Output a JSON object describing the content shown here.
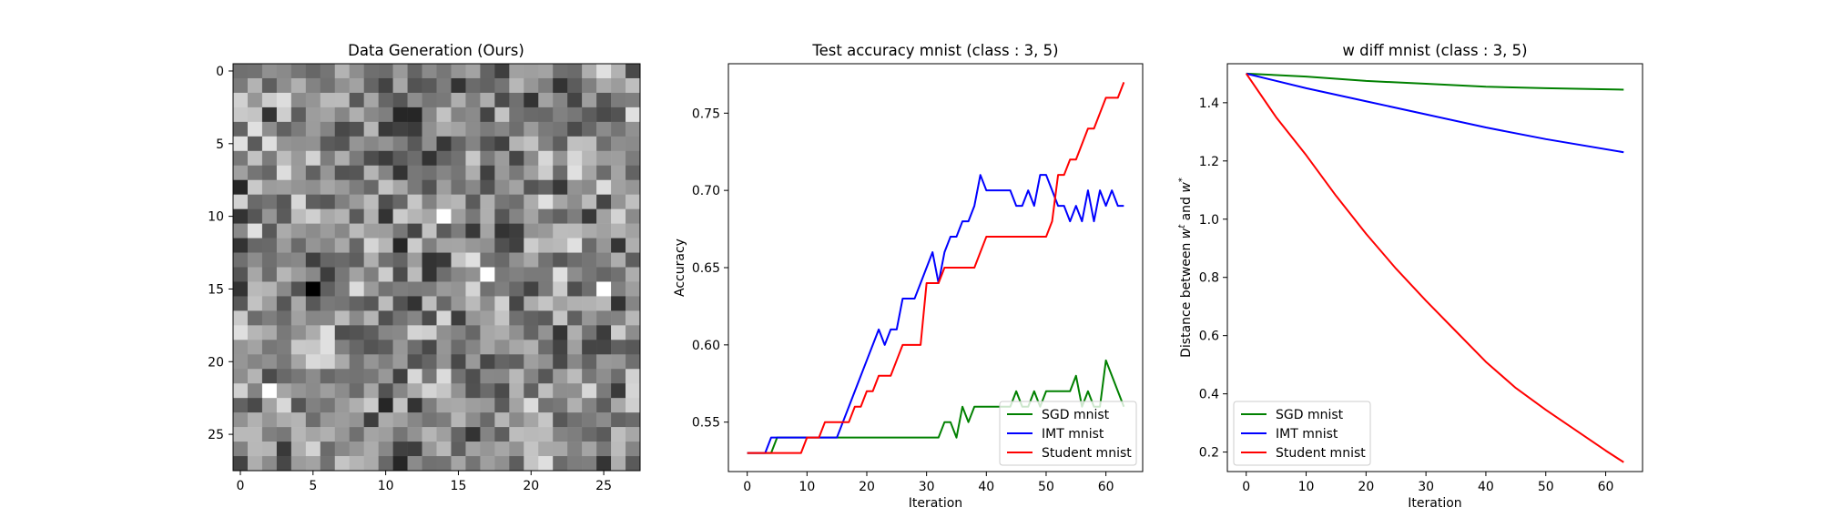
{
  "chart_data": [
    {
      "type": "heatmap",
      "title": "Data Generation (Ours)",
      "xlabel": "",
      "ylabel": "",
      "colormap": "gray",
      "size": [
        28,
        28
      ],
      "x_ticks": [
        0,
        5,
        10,
        15,
        20,
        25
      ],
      "y_ticks": [
        0,
        5,
        10,
        15,
        20,
        25
      ],
      "value_range": [
        0,
        1
      ],
      "notable_pixels": [
        {
          "row": 15,
          "col": 5,
          "value": 0.0
        },
        {
          "row": 10,
          "col": 14,
          "value": 1.0
        },
        {
          "row": 14,
          "col": 17,
          "value": 1.0
        },
        {
          "row": 15,
          "col": 25,
          "value": 1.0
        },
        {
          "row": 22,
          "col": 2,
          "value": 1.0
        },
        {
          "row": 3,
          "col": 11,
          "value": 0.15
        },
        {
          "row": 3,
          "col": 12,
          "value": 0.15
        },
        {
          "row": 8,
          "col": 0,
          "value": 0.15
        },
        {
          "row": 12,
          "col": 11,
          "value": 0.15
        },
        {
          "row": 23,
          "col": 10,
          "value": 0.15
        },
        {
          "row": 27,
          "col": 11,
          "value": 0.15
        }
      ]
    },
    {
      "type": "line",
      "title": "Test accuracy mnist (class : 3, 5)",
      "xlabel": "Iteration",
      "ylabel": "Accuracy",
      "xlim": [
        -3.15,
        66.15
      ],
      "ylim": [
        0.518,
        0.782
      ],
      "x_ticks": [
        0,
        10,
        20,
        30,
        40,
        50,
        60
      ],
      "y_ticks": [
        0.55,
        0.6,
        0.65,
        0.7,
        0.75
      ],
      "y_tick_labels": [
        "0.55",
        "0.60",
        "0.65",
        "0.70",
        "0.75"
      ],
      "legend_position": "lower-right",
      "series": [
        {
          "name": "SGD mnist",
          "color": "#008000",
          "values": [
            0.53,
            0.53,
            0.53,
            0.53,
            0.53,
            0.54,
            0.54,
            0.54,
            0.54,
            0.54,
            0.54,
            0.54,
            0.54,
            0.54,
            0.54,
            0.54,
            0.54,
            0.54,
            0.54,
            0.54,
            0.54,
            0.54,
            0.54,
            0.54,
            0.54,
            0.54,
            0.54,
            0.54,
            0.54,
            0.54,
            0.54,
            0.54,
            0.54,
            0.55,
            0.55,
            0.54,
            0.56,
            0.55,
            0.56,
            0.56,
            0.56,
            0.56,
            0.56,
            0.56,
            0.56,
            0.57,
            0.56,
            0.56,
            0.57,
            0.56,
            0.57,
            0.57,
            0.57,
            0.57,
            0.57,
            0.58,
            0.56,
            0.57,
            0.56,
            0.56,
            0.59,
            0.58,
            0.57,
            0.56
          ]
        },
        {
          "name": "IMT mnist",
          "color": "#0000ff",
          "values": [
            0.53,
            0.53,
            0.53,
            0.53,
            0.54,
            0.54,
            0.54,
            0.54,
            0.54,
            0.54,
            0.54,
            0.54,
            0.54,
            0.54,
            0.54,
            0.54,
            0.55,
            0.56,
            0.57,
            0.58,
            0.59,
            0.6,
            0.61,
            0.6,
            0.61,
            0.61,
            0.63,
            0.63,
            0.63,
            0.64,
            0.65,
            0.66,
            0.64,
            0.66,
            0.67,
            0.67,
            0.68,
            0.68,
            0.69,
            0.71,
            0.7,
            0.7,
            0.7,
            0.7,
            0.7,
            0.69,
            0.69,
            0.7,
            0.69,
            0.71,
            0.71,
            0.7,
            0.69,
            0.69,
            0.68,
            0.69,
            0.68,
            0.7,
            0.68,
            0.7,
            0.69,
            0.7,
            0.69,
            0.69
          ]
        },
        {
          "name": "Student mnist",
          "color": "#ff0000",
          "values": [
            0.53,
            0.53,
            0.53,
            0.53,
            0.53,
            0.53,
            0.53,
            0.53,
            0.53,
            0.53,
            0.54,
            0.54,
            0.54,
            0.55,
            0.55,
            0.55,
            0.55,
            0.55,
            0.56,
            0.56,
            0.57,
            0.57,
            0.58,
            0.58,
            0.58,
            0.59,
            0.6,
            0.6,
            0.6,
            0.6,
            0.64,
            0.64,
            0.64,
            0.65,
            0.65,
            0.65,
            0.65,
            0.65,
            0.65,
            0.66,
            0.67,
            0.67,
            0.67,
            0.67,
            0.67,
            0.67,
            0.67,
            0.67,
            0.67,
            0.67,
            0.67,
            0.68,
            0.71,
            0.71,
            0.72,
            0.72,
            0.73,
            0.74,
            0.74,
            0.75,
            0.76,
            0.76,
            0.76,
            0.77
          ]
        }
      ]
    },
    {
      "type": "line",
      "title": "w diff mnist (class : 3, 5)",
      "xlabel": "Iteration",
      "ylabel_parts": [
        "Distance between ",
        "w",
        "t",
        " and ",
        "w",
        "*"
      ],
      "xlim": [
        -3.15,
        66.15
      ],
      "ylim": [
        0.133,
        1.534
      ],
      "x_ticks": [
        0,
        10,
        20,
        30,
        40,
        50,
        60
      ],
      "y_ticks": [
        0.2,
        0.4,
        0.6,
        0.8,
        1.0,
        1.2,
        1.4
      ],
      "y_tick_labels": [
        "0.2",
        "0.4",
        "0.6",
        "0.8",
        "1.0",
        "1.2",
        "1.4"
      ],
      "legend_position": "lower-left",
      "series": [
        {
          "name": "SGD mnist",
          "color": "#008000",
          "x": [
            0,
            10,
            20,
            30,
            40,
            50,
            63
          ],
          "values": [
            1.5,
            1.49,
            1.475,
            1.465,
            1.455,
            1.45,
            1.445
          ]
        },
        {
          "name": "IMT mnist",
          "color": "#0000ff",
          "x": [
            0,
            10,
            20,
            30,
            40,
            50,
            63
          ],
          "values": [
            1.5,
            1.45,
            1.405,
            1.36,
            1.315,
            1.275,
            1.23
          ]
        },
        {
          "name": "Student mnist",
          "color": "#ff0000",
          "x": [
            0,
            5,
            10,
            15,
            20,
            25,
            30,
            35,
            40,
            45,
            50,
            55,
            60,
            63
          ],
          "values": [
            1.5,
            1.35,
            1.22,
            1.08,
            0.95,
            0.83,
            0.72,
            0.615,
            0.51,
            0.42,
            0.345,
            0.275,
            0.205,
            0.165
          ]
        }
      ]
    }
  ]
}
